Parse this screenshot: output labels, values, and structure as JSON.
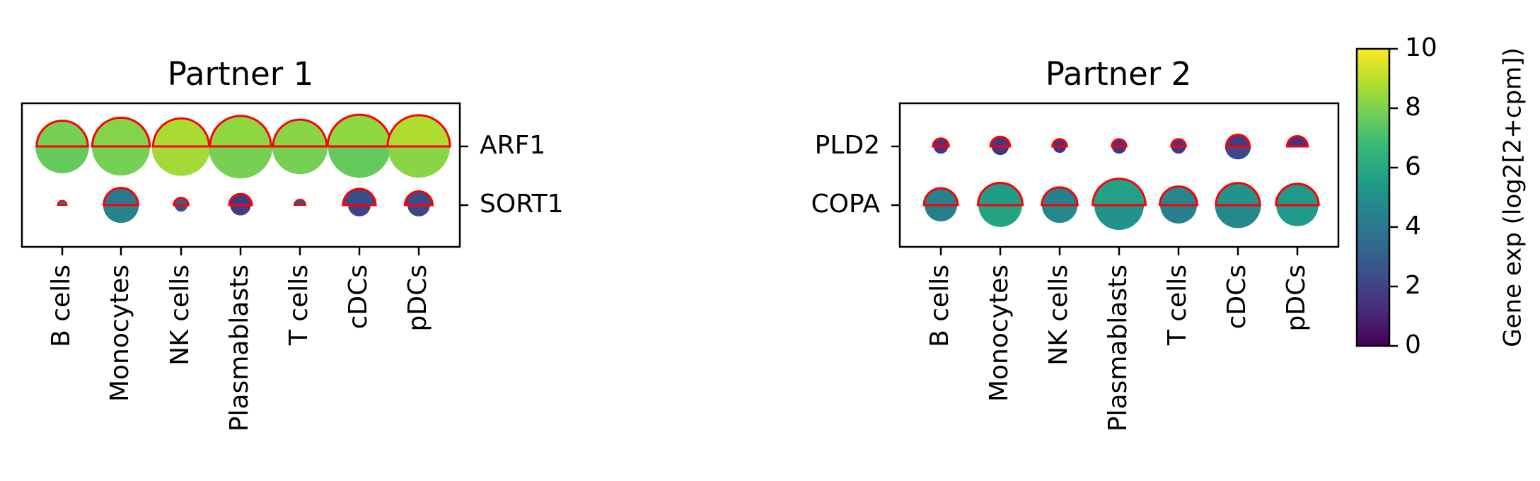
{
  "chart_data": [
    {
      "type": "dotplot",
      "title": "Partner 1",
      "categories": [
        "B cells",
        "Monocytes",
        "NK cells",
        "Plasmablasts",
        "T cells",
        "cDCs",
        "pDCs"
      ],
      "genes": [
        "ARF1",
        "SORT1"
      ],
      "size_metric": "fraction of expressing cells (top half = condition A, outlined red; bottom half = condition B)",
      "top_half": {
        "ARF1": {
          "size": [
            0.62,
            0.78,
            0.74,
            0.88,
            0.68,
            0.95,
            0.92
          ],
          "exp": [
            7.9,
            8.1,
            8.7,
            8.3,
            8.2,
            8.3,
            8.8
          ]
        },
        "SORT1": {
          "size": [
            0.02,
            0.28,
            0.05,
            0.12,
            0.03,
            0.25,
            0.18
          ],
          "exp": [
            3.5,
            4.0,
            3.0,
            1.8,
            2.5,
            2.4,
            2.3
          ]
        }
      },
      "bottom_half": {
        "ARF1": {
          "size": [
            0.68,
            0.8,
            0.82,
            0.97,
            0.73,
            0.93,
            0.92
          ],
          "exp": [
            7.6,
            7.9,
            8.6,
            7.9,
            7.9,
            7.6,
            8.2
          ]
        },
        "SORT1": {
          "size": [
            0.0,
            0.3,
            0.04,
            0.1,
            0.0,
            0.12,
            0.12
          ],
          "exp": [
            0,
            4.5,
            2.5,
            1.8,
            0,
            2.0,
            2.2
          ]
        }
      }
    },
    {
      "type": "dotplot",
      "title": "Partner 2",
      "categories": [
        "B cells",
        "Monocytes",
        "NK cells",
        "Plasmablasts",
        "T cells",
        "cDCs",
        "pDCs"
      ],
      "genes": [
        "PLD2",
        "COPA"
      ],
      "size_metric": "fraction of expressing cells (top half = condition A, outlined red; bottom half = condition B)",
      "top_half": {
        "PLD2": {
          "size": [
            0.06,
            0.09,
            0.05,
            0.05,
            0.05,
            0.13,
            0.1
          ],
          "exp": [
            1.5,
            1.6,
            1.4,
            1.5,
            1.5,
            1.8,
            1.5
          ]
        },
        "COPA": {
          "size": [
            0.27,
            0.47,
            0.3,
            0.66,
            0.33,
            0.46,
            0.43
          ],
          "exp": [
            4.5,
            5.5,
            4.4,
            5.7,
            4.6,
            5.1,
            5.3
          ]
        }
      },
      "bottom_half": {
        "PLD2": {
          "size": [
            0.05,
            0.07,
            0.04,
            0.05,
            0.05,
            0.16,
            0.0
          ],
          "exp": [
            1.5,
            1.6,
            1.5,
            1.5,
            1.6,
            2.2,
            0
          ]
        },
        "COPA": {
          "size": [
            0.25,
            0.45,
            0.3,
            0.58,
            0.32,
            0.5,
            0.42
          ],
          "exp": [
            4.3,
            5.8,
            4.7,
            5.1,
            4.4,
            4.7,
            5.4
          ]
        }
      }
    }
  ],
  "colorbar": {
    "label": "Gene exp (log2[2+cpm])",
    "min": 0,
    "max": 10,
    "ticks": [
      "0",
      "2",
      "4",
      "6",
      "8",
      "10"
    ],
    "colormap": "viridis"
  },
  "colors": {
    "outline": "#ff0000",
    "viridis_stops": [
      "#440154",
      "#482878",
      "#3e4989",
      "#31688e",
      "#26828e",
      "#1f9e89",
      "#35b779",
      "#6ece58",
      "#b5de2b",
      "#fde725"
    ]
  }
}
